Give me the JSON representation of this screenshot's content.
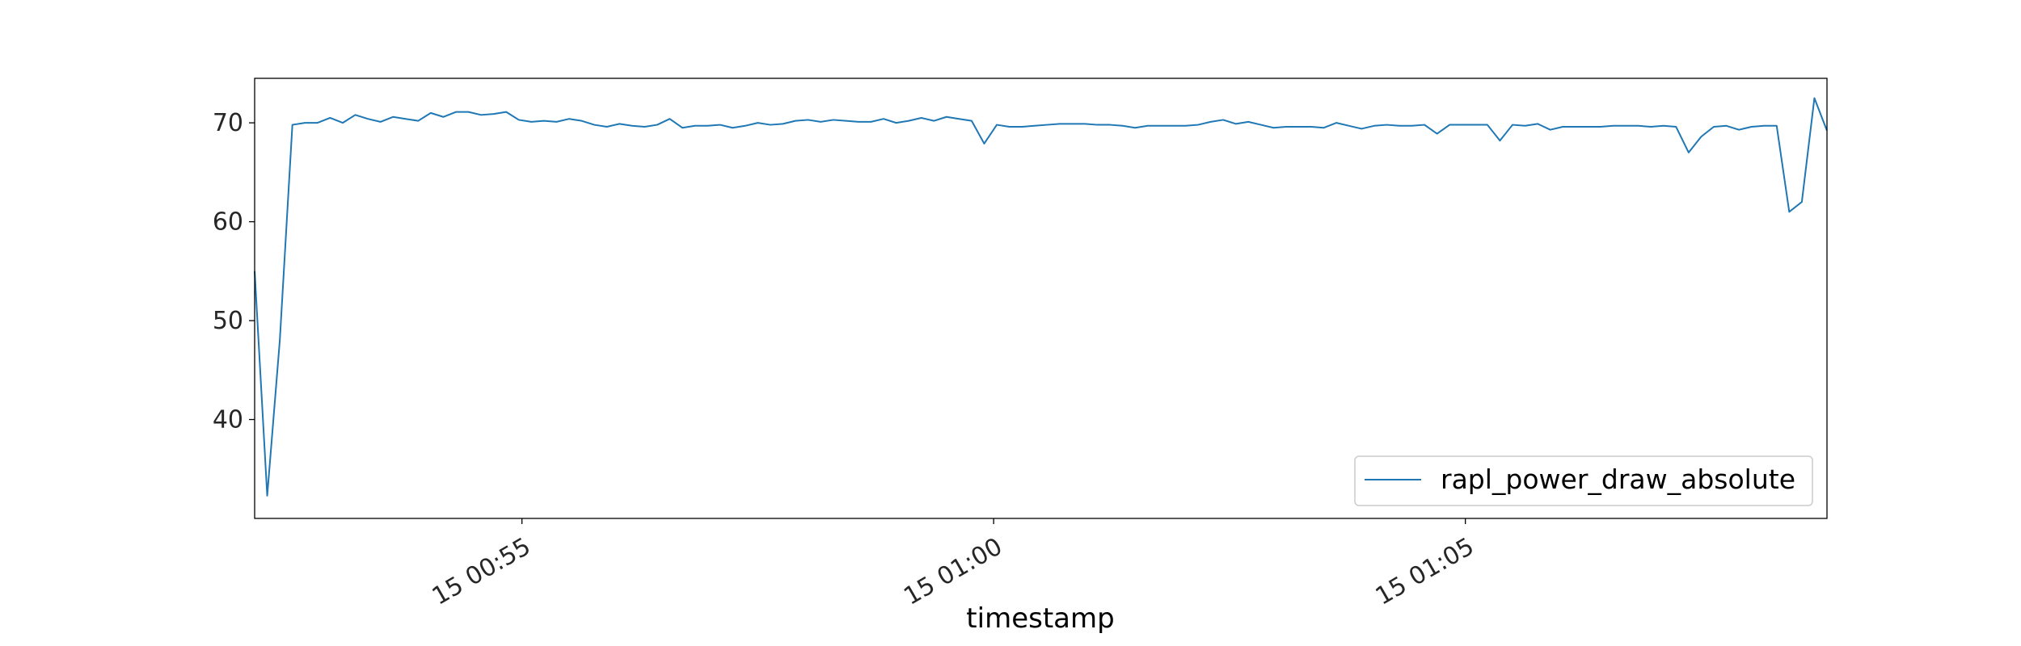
{
  "chart_data": {
    "type": "line",
    "title": "",
    "xlabel": "timestamp",
    "ylabel": "",
    "x_unit": "minutes",
    "xlim": [
      "00:52:10",
      "01:08:50"
    ],
    "ylim": [
      30.0,
      74.5
    ],
    "x_ticks": [
      {
        "value": "00:55:00",
        "label": "15 00:55"
      },
      {
        "value": "01:00:00",
        "label": "15 01:00"
      },
      {
        "value": "01:05:00",
        "label": "15 01:05"
      }
    ],
    "y_ticks": [
      {
        "value": 40,
        "label": "40"
      },
      {
        "value": 50,
        "label": "50"
      },
      {
        "value": 60,
        "label": "60"
      },
      {
        "value": 70,
        "label": "70"
      }
    ],
    "grid": false,
    "legend": {
      "position": "bottom-right"
    },
    "series": [
      {
        "name": "rapl_power_draw_absolute",
        "color": "#1f77b4",
        "start": "00:52:10",
        "interval_seconds": 8,
        "values": [
          55.0,
          32.3,
          48.0,
          69.8,
          70.0,
          70.0,
          70.5,
          70.0,
          70.8,
          70.4,
          70.1,
          70.6,
          70.4,
          70.2,
          71.0,
          70.6,
          71.1,
          71.1,
          70.8,
          70.9,
          71.1,
          70.3,
          70.1,
          70.2,
          70.1,
          70.4,
          70.2,
          69.8,
          69.6,
          69.9,
          69.7,
          69.6,
          69.8,
          70.4,
          69.5,
          69.7,
          69.7,
          69.8,
          69.5,
          69.7,
          70.0,
          69.8,
          69.9,
          70.2,
          70.3,
          70.1,
          70.3,
          70.2,
          70.1,
          70.1,
          70.4,
          70.0,
          70.2,
          70.5,
          70.2,
          70.6,
          70.4,
          70.2,
          67.9,
          69.8,
          69.6,
          69.6,
          69.7,
          69.8,
          69.9,
          69.9,
          69.9,
          69.8,
          69.8,
          69.7,
          69.5,
          69.7,
          69.7,
          69.7,
          69.7,
          69.8,
          70.1,
          70.3,
          69.9,
          70.1,
          69.8,
          69.5,
          69.6,
          69.6,
          69.6,
          69.5,
          70.0,
          69.7,
          69.4,
          69.7,
          69.8,
          69.7,
          69.7,
          69.8,
          68.9,
          69.8,
          69.8,
          69.8,
          69.8,
          68.2,
          69.8,
          69.7,
          69.9,
          69.3,
          69.6,
          69.6,
          69.6,
          69.6,
          69.7,
          69.7,
          69.7,
          69.6,
          69.7,
          69.6,
          67.0,
          68.6,
          69.6,
          69.7,
          69.3,
          69.6,
          69.7,
          69.7,
          61.0,
          62.0,
          72.5,
          69.2
        ]
      }
    ]
  }
}
